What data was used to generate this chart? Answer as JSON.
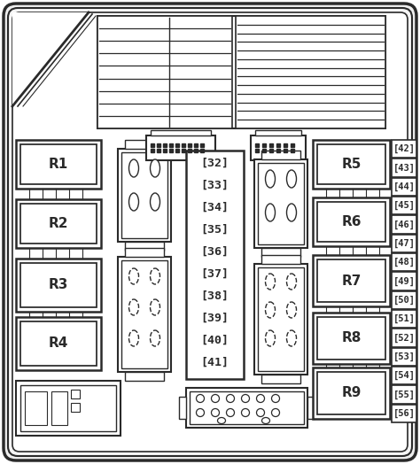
{
  "bg_color": "#ffffff",
  "line_color": "#2a2a2a",
  "fig_width": 4.74,
  "fig_height": 5.24,
  "dpi": 100,
  "relay_labels_left": [
    "R1",
    "R2",
    "R3",
    "R4"
  ],
  "relay_labels_right": [
    "R5",
    "R6",
    "R7",
    "R8",
    "R9"
  ],
  "fuse_numbers": [
    "42",
    "43",
    "44",
    "45",
    "46",
    "47",
    "48",
    "49",
    "50",
    "51",
    "52",
    "53",
    "54",
    "55",
    "56"
  ],
  "numbered_fuses": [
    "32",
    "33",
    "34",
    "35",
    "36",
    "37",
    "38",
    "39",
    "40",
    "41"
  ]
}
